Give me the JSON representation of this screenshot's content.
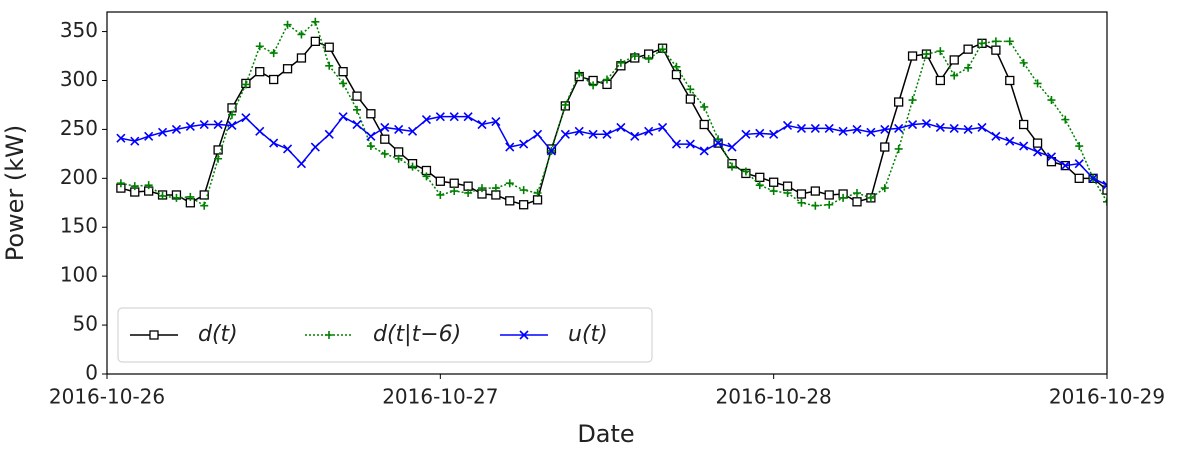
{
  "chart_data": {
    "type": "line",
    "x_label": "Date",
    "y_label": "Power (kW)",
    "x": [
      1,
      2,
      3,
      4,
      5,
      6,
      7,
      8,
      9,
      10,
      11,
      12,
      13,
      14,
      15,
      16,
      17,
      18,
      19,
      20,
      21,
      22,
      23,
      24,
      25,
      26,
      27,
      28,
      29,
      30,
      31,
      32,
      33,
      34,
      35,
      36,
      37,
      38,
      39,
      40,
      41,
      42,
      43,
      44,
      45,
      46,
      47,
      48,
      49,
      50,
      51,
      52,
      53,
      54,
      55,
      56,
      57,
      58,
      59,
      60,
      61,
      62,
      63,
      64,
      65,
      66,
      67,
      68,
      69,
      70,
      71,
      72
    ],
    "series": [
      {
        "name": "d(t)",
        "color": "#000000",
        "marker": "square",
        "dash": "solid",
        "values": [
          190,
          186,
          187,
          183,
          183,
          175,
          183,
          229,
          272,
          297,
          309,
          301,
          312,
          323,
          340,
          334,
          309,
          284,
          266,
          240,
          227,
          215,
          208,
          197,
          195,
          192,
          184,
          183,
          177,
          173,
          178,
          230,
          274,
          304,
          300,
          296,
          315,
          323,
          327,
          333,
          306,
          281,
          255,
          236,
          215,
          205,
          201,
          196,
          192,
          184,
          187,
          183,
          184,
          176,
          180,
          232,
          278,
          325,
          327,
          300,
          321,
          332,
          338,
          331,
          300,
          255,
          236,
          217,
          213,
          200,
          200,
          188
        ]
      },
      {
        "name": "d(t|t−6)",
        "color": "#008000",
        "marker": "plus",
        "dash": "dotted",
        "values": [
          195,
          192,
          193,
          182,
          180,
          181,
          172,
          220,
          265,
          296,
          335,
          328,
          357,
          347,
          360,
          315,
          297,
          270,
          233,
          225,
          220,
          212,
          202,
          183,
          187,
          185,
          190,
          190,
          195,
          188,
          185,
          228,
          275,
          307,
          295,
          301,
          318,
          325,
          322,
          332,
          314,
          291,
          273,
          240,
          212,
          207,
          193,
          187,
          185,
          175,
          172,
          173,
          180,
          185,
          180,
          190,
          230,
          280,
          327,
          330,
          305,
          313,
          338,
          340,
          340,
          318,
          297,
          280,
          260,
          233,
          200,
          176
        ]
      },
      {
        "name": "u(t)",
        "color": "#0000ff",
        "marker": "x",
        "dash": "solid",
        "values": [
          241,
          238,
          243,
          247,
          250,
          253,
          255,
          255,
          254,
          262,
          248,
          236,
          230,
          215,
          232,
          245,
          263,
          255,
          243,
          252,
          250,
          248,
          260,
          263,
          263,
          263,
          255,
          258,
          232,
          235,
          245,
          228,
          245,
          248,
          245,
          245,
          252,
          243,
          248,
          252,
          235,
          235,
          228,
          236,
          232,
          245,
          246,
          245,
          254,
          251,
          251,
          251,
          248,
          250,
          247,
          250,
          251,
          255,
          256,
          252,
          251,
          250,
          252,
          243,
          238,
          233,
          227,
          222,
          213,
          215,
          200,
          193
        ]
      }
    ],
    "xlim": [
      0,
      72
    ],
    "xticks": [
      {
        "value": 0,
        "label": "2016-10-26"
      },
      {
        "value": 24,
        "label": "2016-10-27"
      },
      {
        "value": 48,
        "label": "2016-10-28"
      },
      {
        "value": 72,
        "label": "2016-10-29"
      }
    ],
    "ylim": [
      0,
      370
    ],
    "yticks": [
      0,
      50,
      100,
      150,
      200,
      250,
      300,
      350
    ],
    "legend": "lower left"
  }
}
